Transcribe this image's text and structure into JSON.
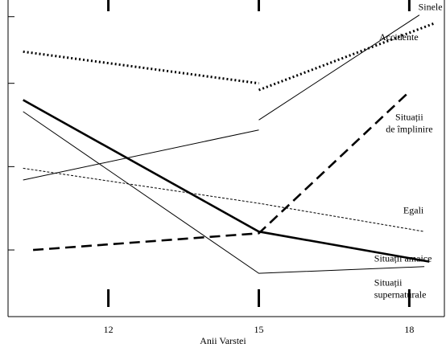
{
  "chart_data": {
    "type": "line",
    "xlabel": "Anii Varstei",
    "categories": [
      "12",
      "15",
      "18"
    ],
    "x": [
      12,
      15,
      18
    ],
    "series": [
      {
        "name": "Sinele",
        "style": "thin",
        "segments": [
          {
            "x": [
              10.3,
              15.0
            ],
            "y": [
              8.2,
              11.2
            ]
          },
          {
            "x": [
              15.0,
              18.2
            ],
            "y": [
              11.8,
              18.1
            ]
          }
        ]
      },
      {
        "name": "Accidente",
        "style": "dotted",
        "segments": [
          {
            "x": [
              10.3,
              15.0
            ],
            "y": [
              15.9,
              14.0
            ]
          },
          {
            "x": [
              15.0,
              18.5
            ],
            "y": [
              13.6,
              17.6
            ]
          }
        ]
      },
      {
        "name": "Situații de împlinire",
        "style": "dashed-thick",
        "segments": [
          {
            "x": [
              10.5,
              15.0,
              18.0
            ],
            "y": [
              4.0,
              5.0,
              13.5
            ]
          }
        ]
      },
      {
        "name": "Egali",
        "style": "dashed-fine",
        "segments": [
          {
            "x": [
              10.3,
              15.0,
              18.3
            ],
            "y": [
              8.9,
              6.8,
              5.1
            ]
          }
        ]
      },
      {
        "name": "Situații amaice",
        "style": "thick",
        "segments": [
          {
            "x": [
              10.3,
              15.0,
              18.4
            ],
            "y": [
              13.0,
              5.1,
              3.3
            ]
          }
        ]
      },
      {
        "name": "Situații supernaturale",
        "style": "thin",
        "segments": [
          {
            "x": [
              10.3,
              15.0,
              18.3
            ],
            "y": [
              12.3,
              2.6,
              3.0
            ]
          }
        ]
      }
    ],
    "xlim": [
      10,
      18.7
    ],
    "ylim": [
      0,
      19
    ],
    "yticks": [
      4,
      9,
      14,
      18
    ],
    "grid": false,
    "legend": "inline-right",
    "labels": [
      {
        "lines": [
          "Sinele"
        ],
        "x": 18.18,
        "y": 18.4,
        "anchor": "start"
      },
      {
        "lines": [
          "Accidente"
        ],
        "x": 17.4,
        "y": 16.6,
        "anchor": "start"
      },
      {
        "lines": [
          "Situații",
          "de împlinire"
        ],
        "x": 18.0,
        "y": 11.8,
        "anchor": "middle"
      },
      {
        "lines": [
          "Egali"
        ],
        "x": 17.88,
        "y": 6.2,
        "anchor": "start"
      },
      {
        "lines": [
          "Situații amaice"
        ],
        "x": 17.3,
        "y": 3.3,
        "anchor": "start"
      },
      {
        "lines": [
          "Situații",
          "supernaturale"
        ],
        "x": 17.3,
        "y": 1.85,
        "anchor": "start"
      }
    ]
  }
}
